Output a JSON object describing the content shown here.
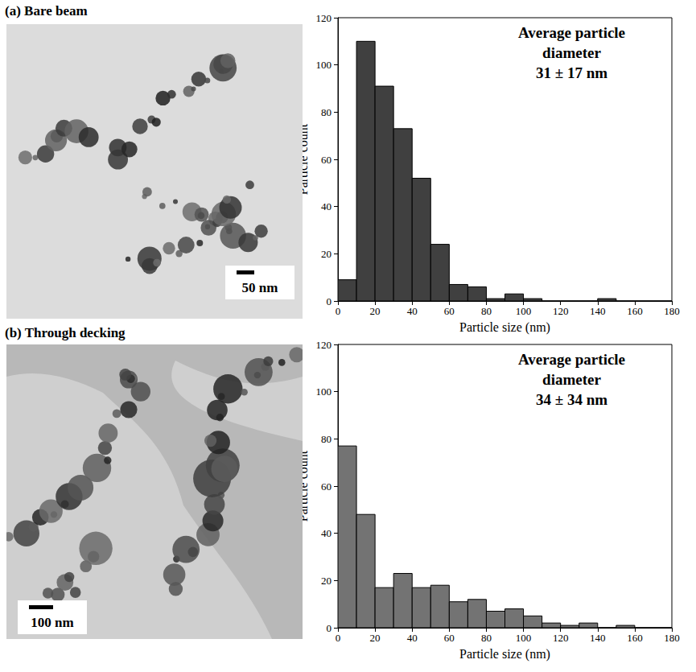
{
  "panels": [
    {
      "label": "(a) Bare beam",
      "image": {
        "scale_bar": "50 nm"
      }
    },
    {
      "label": "(b) Through decking",
      "image": {
        "scale_bar": "100 nm"
      }
    }
  ],
  "chart_data": [
    {
      "type": "histogram",
      "bins": [
        0,
        10,
        20,
        30,
        40,
        50,
        60,
        70,
        80,
        90,
        100,
        110,
        120,
        130,
        140,
        150,
        160,
        170,
        180
      ],
      "counts": [
        9,
        110,
        91,
        73,
        52,
        24,
        7,
        6,
        1,
        3,
        1,
        0,
        0,
        0,
        1,
        0,
        0,
        0
      ],
      "color": "#404040",
      "annotation": [
        "Average particle",
        "diameter",
        "31 ± 17 nm"
      ],
      "xlabel": "Particle size (nm)",
      "ylabel": "Particle count",
      "xlim": [
        0,
        180
      ],
      "xticks": [
        0,
        20,
        40,
        60,
        80,
        100,
        120,
        140,
        160,
        180
      ],
      "ylim": [
        0,
        120
      ],
      "yticks": [
        0,
        20,
        40,
        60,
        80,
        100,
        120
      ]
    },
    {
      "type": "histogram",
      "bins": [
        0,
        10,
        20,
        30,
        40,
        50,
        60,
        70,
        80,
        90,
        100,
        110,
        120,
        130,
        140,
        150,
        160,
        170,
        180
      ],
      "counts": [
        77,
        48,
        17,
        23,
        17,
        18,
        11,
        12,
        7,
        8,
        5,
        2,
        1,
        2,
        0,
        1,
        0,
        0
      ],
      "color": "#737373",
      "annotation": [
        "Average particle",
        "diameter",
        "34 ± 34 nm"
      ],
      "xlabel": "Particle size (nm)",
      "ylabel": "Particle count",
      "xlim": [
        0,
        180
      ],
      "xticks": [
        0,
        20,
        40,
        60,
        80,
        100,
        120,
        140,
        160,
        180
      ],
      "ylim": [
        0,
        120
      ],
      "yticks": [
        0,
        20,
        40,
        60,
        80,
        100,
        120
      ]
    }
  ]
}
